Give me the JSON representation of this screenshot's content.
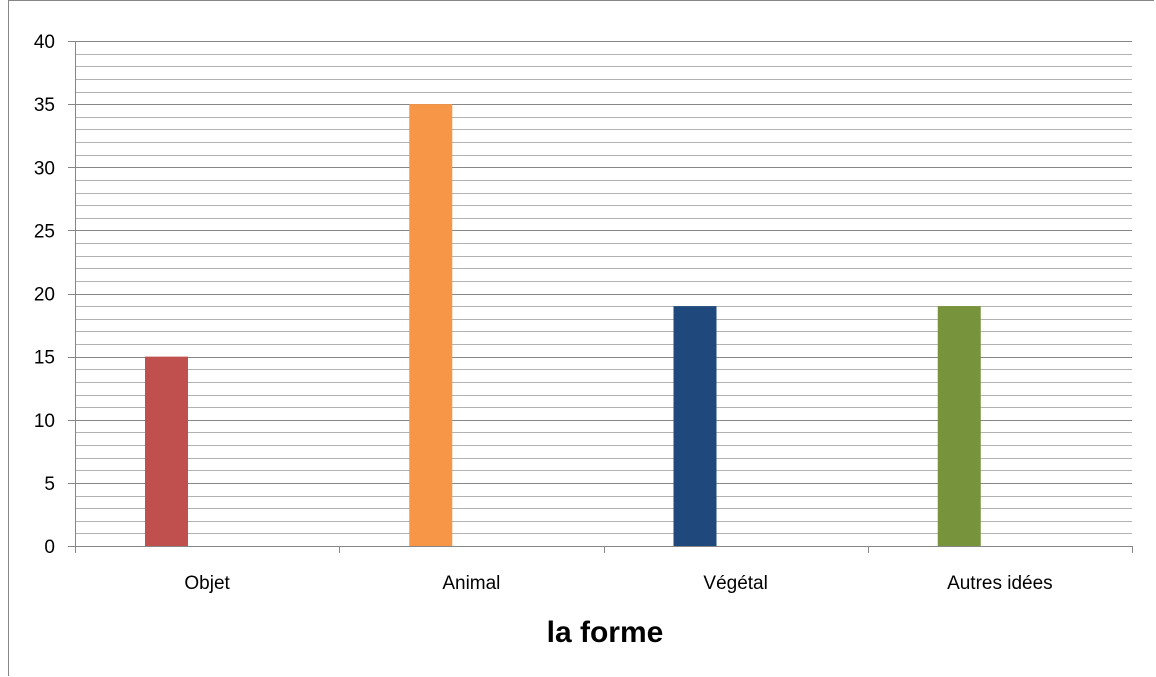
{
  "chart_data": {
    "type": "bar",
    "categories": [
      "Objet",
      "Animal",
      "Végétal",
      "Autres idées"
    ],
    "values": [
      15,
      35,
      19,
      19
    ],
    "colors": [
      "#c0504d",
      "#f79646",
      "#1f497d",
      "#77933c"
    ],
    "xlabel": "la forme",
    "ylabel": "",
    "ylim": [
      0,
      40
    ],
    "major_tick_step": 5,
    "minor_tick_step": 1,
    "yticks": [
      "0",
      "5",
      "10",
      "15",
      "20",
      "25",
      "30",
      "35",
      "40"
    ],
    "grid": true,
    "legend": false
  }
}
